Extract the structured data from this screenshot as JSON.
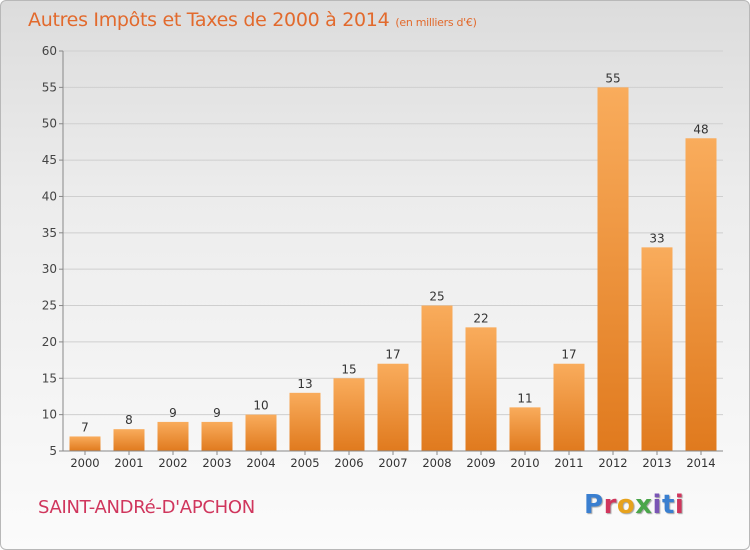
{
  "chart_data": {
    "type": "bar",
    "title": "Autres Impôts et Taxes de 2000 à 2014",
    "subtitle": "(en milliers d'€)",
    "categories": [
      "2000",
      "2001",
      "2002",
      "2003",
      "2004",
      "2005",
      "2006",
      "2007",
      "2008",
      "2009",
      "2010",
      "2011",
      "2012",
      "2013",
      "2014"
    ],
    "values": [
      7,
      8,
      9,
      9,
      10,
      13,
      15,
      17,
      25,
      22,
      11,
      17,
      55,
      33,
      48
    ],
    "ylim": [
      5,
      60
    ],
    "yticks": [
      5,
      10,
      15,
      20,
      25,
      30,
      35,
      40,
      45,
      50,
      55,
      60
    ],
    "grid": true,
    "colors": {
      "bar_top": "#f9ac5c",
      "bar_bottom": "#e07a1e",
      "title": "#e26a2d"
    }
  },
  "commune": "SAINT-ANDRé-D'APCHON",
  "logo": {
    "letters": [
      "P",
      "r",
      "o",
      "x",
      "i",
      "t",
      "i"
    ]
  }
}
